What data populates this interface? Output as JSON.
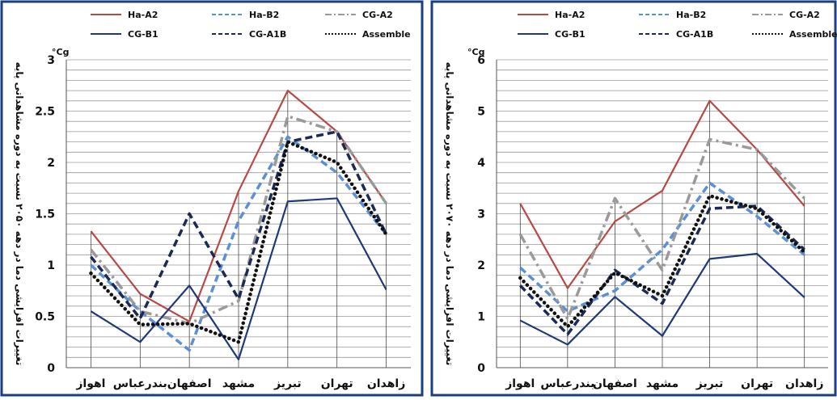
{
  "legend": {
    "items": [
      {
        "label": "Ha-A2",
        "color": "#b84a46",
        "dash": "solid",
        "width": 2
      },
      {
        "label": "Ha-B2",
        "color": "#5b8fd6",
        "dash": "dashed",
        "width": 2
      },
      {
        "label": "CG-A2",
        "color": "#9a9a9a",
        "dash": "dashdot",
        "width": 2
      },
      {
        "label": "CG-B1",
        "color": "#1f3a7a",
        "dash": "solid",
        "width": 2
      },
      {
        "label": "CG-A1B",
        "color": "#1b2a55",
        "dash": "dashed",
        "width": 2
      },
      {
        "label": "Assemble",
        "color": "#111111",
        "dash": "dotted",
        "width": 2
      }
    ]
  },
  "colors": {
    "frame": "#1a3f80",
    "grid": "#9a9a9a"
  },
  "chart_data": [
    {
      "type": "line",
      "ylabel": "تغییرات افزایشی دما در دهه ۲۰۵۰ نسبت به دوره مشاهداتی پایه",
      "yunit": "°Cg",
      "ylim": [
        0,
        3
      ],
      "yticks": [
        0,
        0.5,
        1,
        1.5,
        2,
        2.5,
        3
      ],
      "ytick_labels": [
        "0",
        "0.5",
        "1",
        "1.5",
        "2",
        "2.5",
        "3"
      ],
      "grid": true,
      "categories": [
        "اهواز",
        "بندرعباس",
        "اصفهان",
        "مشهد",
        "تبریز",
        "تهران",
        "زاهدان"
      ],
      "series": [
        {
          "name": "Ha-A2",
          "values": [
            1.33,
            0.72,
            0.45,
            1.72,
            2.7,
            2.3,
            1.6
          ]
        },
        {
          "name": "Ha-B2",
          "values": [
            1.0,
            0.55,
            0.17,
            1.43,
            2.25,
            1.9,
            1.3
          ]
        },
        {
          "name": "CG-A2",
          "values": [
            1.15,
            0.55,
            0.43,
            0.65,
            2.45,
            2.3,
            1.6
          ]
        },
        {
          "name": "CG-B1",
          "values": [
            0.55,
            0.25,
            0.8,
            0.08,
            1.62,
            1.65,
            0.76
          ]
        },
        {
          "name": "CG-A1B",
          "values": [
            1.08,
            0.48,
            1.5,
            0.67,
            2.2,
            2.3,
            1.3
          ]
        },
        {
          "name": "Assemble",
          "values": [
            0.92,
            0.42,
            0.43,
            0.25,
            2.2,
            2.0,
            1.3
          ]
        }
      ]
    },
    {
      "type": "line",
      "ylabel": "تغییرات افزایشی دما در دهه ۲۰۷۰ نسبت به دوره مشاهداتی پایه",
      "yunit": "°Cg",
      "ylim": [
        0,
        6
      ],
      "yticks": [
        0,
        1,
        2,
        3,
        4,
        5,
        6
      ],
      "ytick_labels": [
        "0",
        "1",
        "2",
        "3",
        "4",
        "5",
        "6"
      ],
      "grid": true,
      "categories": [
        "اهواز",
        "بندرعباس",
        "اصفهان",
        "مشهد",
        "تبریز",
        "تهران",
        "زاهدان"
      ],
      "series": [
        {
          "name": "Ha-A2",
          "values": [
            3.2,
            1.55,
            2.85,
            3.45,
            5.2,
            4.25,
            3.15
          ]
        },
        {
          "name": "Ha-B2",
          "values": [
            1.95,
            1.1,
            1.5,
            2.3,
            3.6,
            2.95,
            2.2
          ]
        },
        {
          "name": "CG-A2",
          "values": [
            2.6,
            0.95,
            3.3,
            1.9,
            4.45,
            4.25,
            3.3
          ]
        },
        {
          "name": "CG-B1",
          "values": [
            0.92,
            0.45,
            1.38,
            0.62,
            2.12,
            2.22,
            1.37
          ]
        },
        {
          "name": "CG-A1B",
          "values": [
            1.6,
            0.65,
            1.9,
            1.25,
            3.1,
            3.15,
            2.3
          ]
        },
        {
          "name": "Assemble",
          "values": [
            1.75,
            0.8,
            1.85,
            1.4,
            3.35,
            3.1,
            2.25
          ]
        }
      ]
    }
  ]
}
